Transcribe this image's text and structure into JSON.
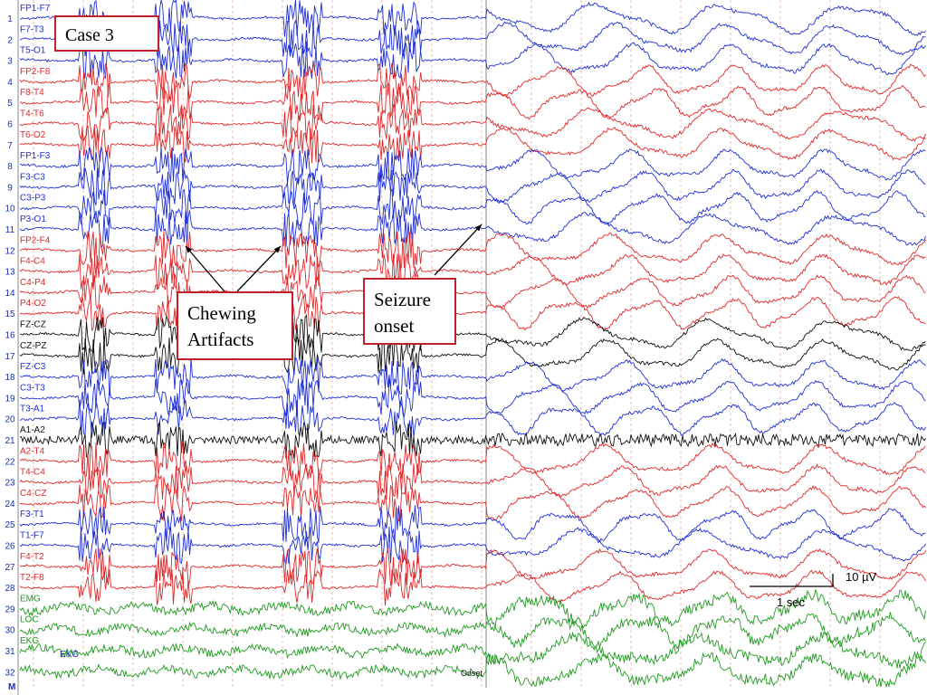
{
  "case_label": "Case 3",
  "chewing_label": [
    "Chewing",
    "Artifacts"
  ],
  "seizure_label": [
    "Seizure",
    "onset"
  ],
  "onset_marker": "Onset",
  "scale": {
    "amplitude": "10 µV",
    "time": "1 sec"
  },
  "bottom_marker": "M",
  "ekg_label": "EKG",
  "colors": {
    "blue": "#1f2fd6",
    "red": "#e0282a",
    "black": "#101010",
    "green": "#1f9a1f",
    "box_border": "#c0202a",
    "grid": "#e58a8a"
  },
  "channels": [
    {
      "n": "1",
      "label": "FP1-F7",
      "color": "blue"
    },
    {
      "n": "2",
      "label": "F7-T3",
      "color": "blue"
    },
    {
      "n": "3",
      "label": "T5-O1",
      "color": "blue"
    },
    {
      "n": "4",
      "label": "FP2-F8",
      "color": "red"
    },
    {
      "n": "5",
      "label": "F8-T4",
      "color": "red"
    },
    {
      "n": "6",
      "label": "T4-T6",
      "color": "red"
    },
    {
      "n": "7",
      "label": "T6-O2",
      "color": "red"
    },
    {
      "n": "8",
      "label": "FP1-F3",
      "color": "blue"
    },
    {
      "n": "9",
      "label": "F3-C3",
      "color": "blue"
    },
    {
      "n": "10",
      "label": "C3-P3",
      "color": "blue"
    },
    {
      "n": "11",
      "label": "P3-O1",
      "color": "blue"
    },
    {
      "n": "12",
      "label": "FP2-F4",
      "color": "red"
    },
    {
      "n": "13",
      "label": "F4-C4",
      "color": "red"
    },
    {
      "n": "14",
      "label": "C4-P4",
      "color": "red"
    },
    {
      "n": "15",
      "label": "P4-O2",
      "color": "red"
    },
    {
      "n": "16",
      "label": "FZ-CZ",
      "color": "black"
    },
    {
      "n": "17",
      "label": "CZ-PZ",
      "color": "black"
    },
    {
      "n": "18",
      "label": "FZ-C3",
      "color": "blue"
    },
    {
      "n": "19",
      "label": "C3-T3",
      "color": "blue"
    },
    {
      "n": "20",
      "label": "T3-A1",
      "color": "blue"
    },
    {
      "n": "21",
      "label": "A1-A2",
      "color": "black"
    },
    {
      "n": "22",
      "label": "A2-T4",
      "color": "red"
    },
    {
      "n": "23",
      "label": "T4-C4",
      "color": "red"
    },
    {
      "n": "24",
      "label": "C4-CZ",
      "color": "red"
    },
    {
      "n": "25",
      "label": "F3-T1",
      "color": "blue"
    },
    {
      "n": "26",
      "label": "T1-F7",
      "color": "blue"
    },
    {
      "n": "27",
      "label": "F4-T2",
      "color": "red"
    },
    {
      "n": "28",
      "label": "T2-F8",
      "color": "red"
    },
    {
      "n": "29",
      "label": "EMG",
      "color": "green"
    },
    {
      "n": "30",
      "label": "LOC",
      "color": "green"
    },
    {
      "n": "31",
      "label": "EKG",
      "color": "green"
    },
    {
      "n": "32",
      "label": "",
      "color": "green"
    }
  ]
}
